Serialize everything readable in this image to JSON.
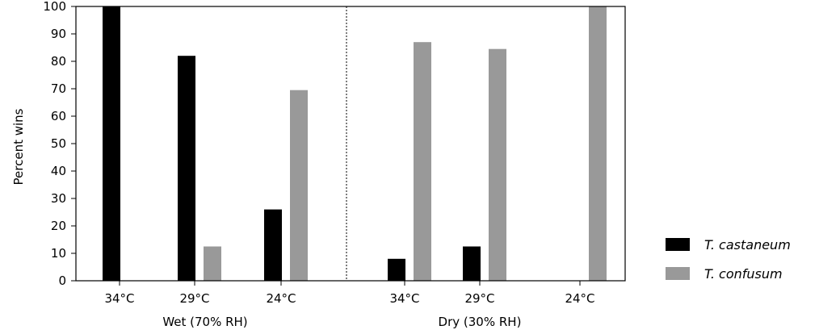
{
  "chart_data": {
    "type": "bar",
    "ylabel": "Percent wins",
    "xlabel": "",
    "title": "",
    "ylim": [
      0,
      100
    ],
    "yticks": [
      0,
      10,
      20,
      30,
      40,
      50,
      60,
      70,
      80,
      90,
      100
    ],
    "groups": [
      {
        "name": "Wet (70% RH)",
        "categories": [
          "34°C",
          "29°C",
          "24°C"
        ]
      },
      {
        "name": "Dry (30% RH)",
        "categories": [
          "34°C",
          "29°C",
          "24°C"
        ]
      }
    ],
    "series": [
      {
        "name": "T. castaneum",
        "color": "#000000",
        "values": [
          100,
          82,
          26,
          8,
          12.5,
          0
        ]
      },
      {
        "name": "T. confusum",
        "color": "#999999",
        "values": [
          0,
          12.5,
          69.5,
          87,
          84.5,
          100
        ]
      }
    ],
    "grid": false,
    "legend_position": "right"
  }
}
